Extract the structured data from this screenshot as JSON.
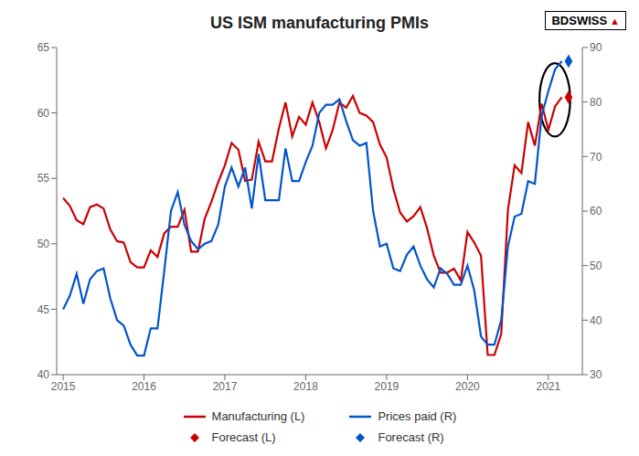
{
  "chart_data": {
    "type": "line",
    "title": "US ISM manufacturing PMIs",
    "xlim": [
      2014.92,
      2021.42
    ],
    "xticks": [
      2015,
      2016,
      2017,
      2018,
      2019,
      2020,
      2021
    ],
    "ylim": [
      40,
      65
    ],
    "yticks": [
      40,
      45,
      50,
      55,
      60,
      65
    ],
    "y2lim": [
      30,
      90
    ],
    "y2ticks": [
      30,
      40,
      50,
      60,
      70,
      80,
      90
    ],
    "grid": false,
    "series": [
      {
        "name": "Manufacturing (L)",
        "type": "line",
        "axis": "y",
        "color": "#cc0000",
        "line_style": "solid",
        "x": [
          2015.0,
          2015.083,
          2015.167,
          2015.25,
          2015.333,
          2015.417,
          2015.5,
          2015.583,
          2015.667,
          2015.75,
          2015.833,
          2015.917,
          2016.0,
          2016.083,
          2016.167,
          2016.25,
          2016.333,
          2016.417,
          2016.5,
          2016.583,
          2016.667,
          2016.75,
          2016.833,
          2016.917,
          2017.0,
          2017.083,
          2017.167,
          2017.25,
          2017.333,
          2017.417,
          2017.5,
          2017.583,
          2017.667,
          2017.75,
          2017.833,
          2017.917,
          2018.0,
          2018.083,
          2018.167,
          2018.25,
          2018.333,
          2018.417,
          2018.5,
          2018.583,
          2018.667,
          2018.75,
          2018.833,
          2018.917,
          2019.0,
          2019.083,
          2019.167,
          2019.25,
          2019.333,
          2019.417,
          2019.5,
          2019.583,
          2019.667,
          2019.75,
          2019.833,
          2019.917,
          2020.0,
          2020.083,
          2020.167,
          2020.25,
          2020.333,
          2020.417,
          2020.5,
          2020.583,
          2020.667,
          2020.75,
          2020.833,
          2020.917,
          2021.0,
          2021.083,
          2021.167
        ],
        "values": [
          53.5,
          52.9,
          51.8,
          51.5,
          52.8,
          53.0,
          52.7,
          51.1,
          50.2,
          50.1,
          48.6,
          48.2,
          48.2,
          49.5,
          49.0,
          50.8,
          51.3,
          51.3,
          52.6,
          49.4,
          49.4,
          51.9,
          53.2,
          54.7,
          56.0,
          57.7,
          57.2,
          54.8,
          54.9,
          57.8,
          56.3,
          56.3,
          58.8,
          60.8,
          58.2,
          59.7,
          59.1,
          60.8,
          59.3,
          57.3,
          58.7,
          60.8,
          60.4,
          61.3,
          60.0,
          59.8,
          59.3,
          57.6,
          56.6,
          54.2,
          52.4,
          51.7,
          52.1,
          52.8,
          51.2,
          49.1,
          47.8,
          47.8,
          48.1,
          47.2,
          50.9,
          50.1,
          49.1,
          41.5,
          41.5,
          43.1,
          52.6,
          56.0,
          55.4,
          59.3,
          57.5,
          60.7,
          58.7,
          60.5,
          61.2
        ]
      },
      {
        "name": "Prices paid (R)",
        "type": "line",
        "axis": "y2",
        "color": "#0055cc",
        "line_style": "solid",
        "x": [
          2015.0,
          2015.083,
          2015.167,
          2015.25,
          2015.333,
          2015.417,
          2015.5,
          2015.583,
          2015.667,
          2015.75,
          2015.833,
          2015.917,
          2016.0,
          2016.083,
          2016.167,
          2016.25,
          2016.333,
          2016.417,
          2016.5,
          2016.583,
          2016.667,
          2016.75,
          2016.833,
          2016.917,
          2017.0,
          2017.083,
          2017.167,
          2017.25,
          2017.333,
          2017.417,
          2017.5,
          2017.583,
          2017.667,
          2017.75,
          2017.833,
          2017.917,
          2018.0,
          2018.083,
          2018.167,
          2018.25,
          2018.333,
          2018.417,
          2018.5,
          2018.583,
          2018.667,
          2018.75,
          2018.833,
          2018.917,
          2019.0,
          2019.083,
          2019.167,
          2019.25,
          2019.333,
          2019.417,
          2019.5,
          2019.583,
          2019.667,
          2019.75,
          2019.833,
          2019.917,
          2020.0,
          2020.083,
          2020.167,
          2020.25,
          2020.333,
          2020.417,
          2020.5,
          2020.583,
          2020.667,
          2020.75,
          2020.833,
          2020.917,
          2021.0,
          2021.083,
          2021.167
        ],
        "values": [
          42.0,
          44.5,
          48.5,
          43.0,
          47.5,
          49.0,
          49.5,
          44.0,
          40.0,
          39.0,
          35.5,
          33.5,
          33.5,
          38.5,
          38.5,
          49.0,
          60.0,
          63.5,
          57.5,
          54.5,
          53.0,
          54.0,
          54.5,
          57.5,
          64.5,
          68.0,
          64.5,
          68.0,
          60.5,
          70.5,
          62.0,
          62.0,
          62.0,
          71.5,
          65.5,
          65.5,
          69.0,
          72.0,
          78.0,
          79.5,
          79.5,
          80.5,
          76.5,
          73.0,
          72.0,
          72.5,
          60.0,
          53.5,
          54.0,
          49.5,
          49.0,
          52.0,
          53.5,
          50.0,
          47.5,
          46.0,
          49.5,
          48.5,
          46.5,
          46.5,
          50.0,
          45.5,
          37.0,
          35.5,
          35.5,
          40.0,
          53.5,
          59.0,
          59.5,
          65.5,
          65.0,
          77.5,
          82.0,
          86.0,
          87.5
        ]
      },
      {
        "name": "Forecast (L)",
        "type": "scatter",
        "axis": "y",
        "color": "#cc0000",
        "marker": "diamond",
        "x": [
          2021.25
        ],
        "values": [
          61.2
        ]
      },
      {
        "name": "Forecast (R)",
        "type": "scatter",
        "axis": "y2",
        "color": "#0055cc",
        "marker": "diamond",
        "x": [
          2021.25
        ],
        "values": [
          87.5
        ]
      }
    ],
    "annotations": [
      {
        "shape": "ellipse",
        "axis": "y",
        "x": 2021.08,
        "y": 61.0,
        "x_radius": 0.19,
        "y_radius": 2.8
      },
      {
        "text": "BDSWISS"
      },
      {
        "text": "▲",
        "color": "#cc0000"
      }
    ]
  }
}
